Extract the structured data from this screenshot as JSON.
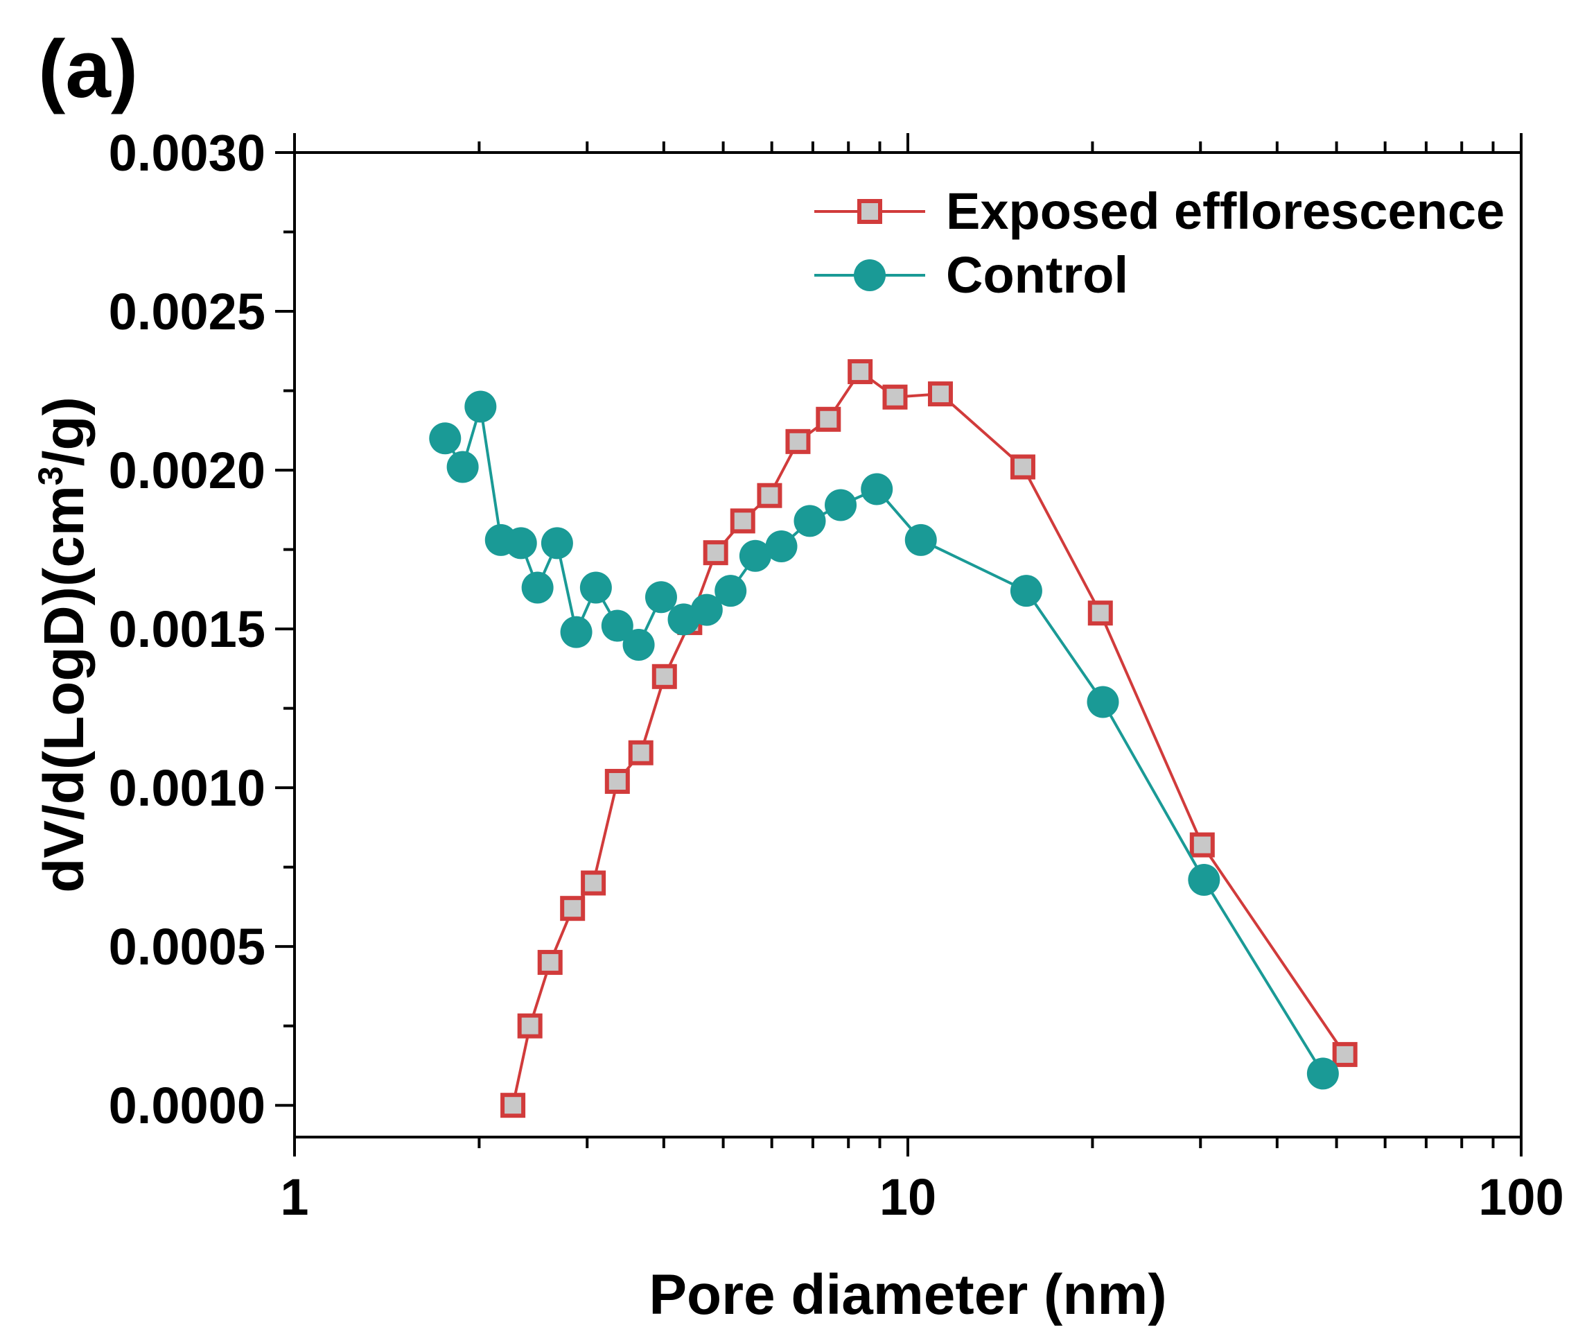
{
  "chart_data": {
    "type": "line",
    "panel_label": "(a)",
    "title": "",
    "xlabel": "Pore diameter (nm)",
    "ylabel_main": "dV/d(LogD)(cm",
    "ylabel_sup": "3",
    "ylabel_tail": "/g)",
    "x_scale": "log",
    "xlim": [
      1,
      100
    ],
    "ylim": [
      -0.0001,
      0.003
    ],
    "x_ticks": [
      {
        "value": 1,
        "label": "1"
      },
      {
        "value": 10,
        "label": "10"
      },
      {
        "value": 100,
        "label": "100"
      }
    ],
    "y_ticks": [
      {
        "value": 0.0,
        "label": "0.0000"
      },
      {
        "value": 0.0005,
        "label": "0.0005"
      },
      {
        "value": 0.001,
        "label": "0.0010"
      },
      {
        "value": 0.0015,
        "label": "0.0015"
      },
      {
        "value": 0.002,
        "label": "0.0020"
      },
      {
        "value": 0.0025,
        "label": "0.0025"
      },
      {
        "value": 0.003,
        "label": "0.0030"
      }
    ],
    "legend_position": "top-right",
    "series": [
      {
        "name": "Exposed efflorescence",
        "color": "#d13b3b",
        "marker_fill": "#c8c8c8",
        "marker": "square",
        "x": [
          2.27,
          2.42,
          2.61,
          2.84,
          3.07,
          3.36,
          3.67,
          4.01,
          4.41,
          4.86,
          5.38,
          5.95,
          6.62,
          7.42,
          8.36,
          9.53,
          11.3,
          15.4,
          20.6,
          30.2,
          51.6
        ],
        "y": [
          0.0,
          0.00025,
          0.00045,
          0.00062,
          0.0007,
          0.00102,
          0.00111,
          0.00135,
          0.00152,
          0.00174,
          0.00184,
          0.00192,
          0.00209,
          0.00216,
          0.00231,
          0.00223,
          0.00224,
          0.00201,
          0.00155,
          0.00082,
          0.00016
        ]
      },
      {
        "name": "Control",
        "color": "#1a9a96",
        "marker_fill": "#1a9a96",
        "marker": "circle",
        "x": [
          1.76,
          1.88,
          2.01,
          2.17,
          2.34,
          2.49,
          2.68,
          2.88,
          3.1,
          3.36,
          3.64,
          3.96,
          4.31,
          4.7,
          5.14,
          5.64,
          6.22,
          6.92,
          7.77,
          8.9,
          10.5,
          15.6,
          20.8,
          30.4,
          47.5
        ],
        "y": [
          0.0021,
          0.00201,
          0.0022,
          0.00178,
          0.00177,
          0.00163,
          0.00177,
          0.00149,
          0.00163,
          0.00151,
          0.00145,
          0.0016,
          0.00153,
          0.00156,
          0.00162,
          0.00173,
          0.00176,
          0.00184,
          0.00189,
          0.00194,
          0.00178,
          0.00162,
          0.00127,
          0.00071,
          0.0001
        ]
      }
    ]
  }
}
